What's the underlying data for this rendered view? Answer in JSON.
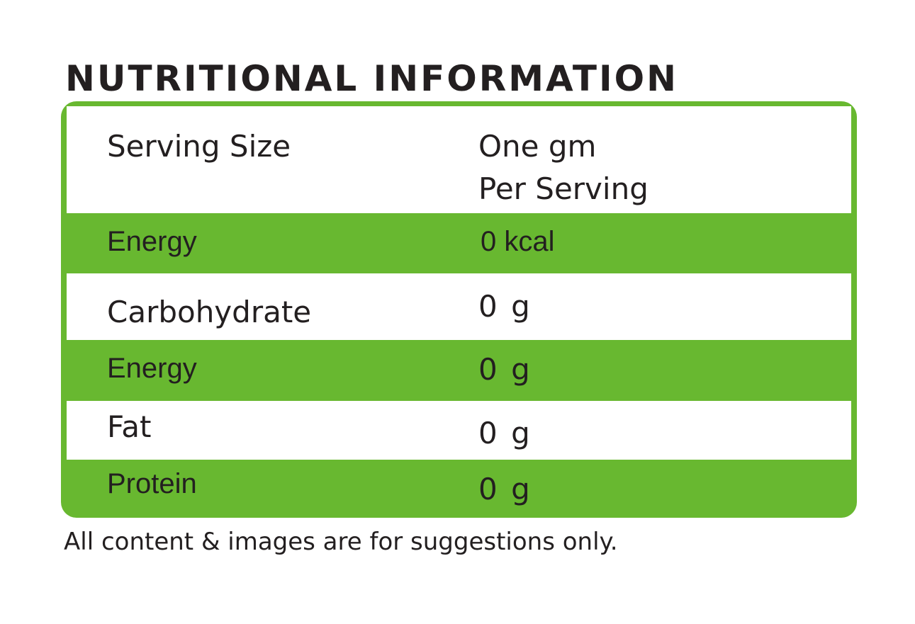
{
  "title": "NUTRITIONAL INFORMATION",
  "colors": {
    "accent_green": "#68b830",
    "text": "#231f20"
  },
  "header_row": {
    "label": "Serving Size",
    "value_line1": "One gm",
    "value_line2": "Per Serving"
  },
  "rows": [
    {
      "label": "Energy",
      "value": "0 kcal"
    },
    {
      "label": "Carbohydrate",
      "value": "0 g"
    },
    {
      "label": "Energy",
      "value": "0 g"
    },
    {
      "label": "Fat",
      "value": "0 g"
    },
    {
      "label": "Protein",
      "value": "0 g"
    }
  ],
  "disclaimer": "All content & images are for suggestions only."
}
